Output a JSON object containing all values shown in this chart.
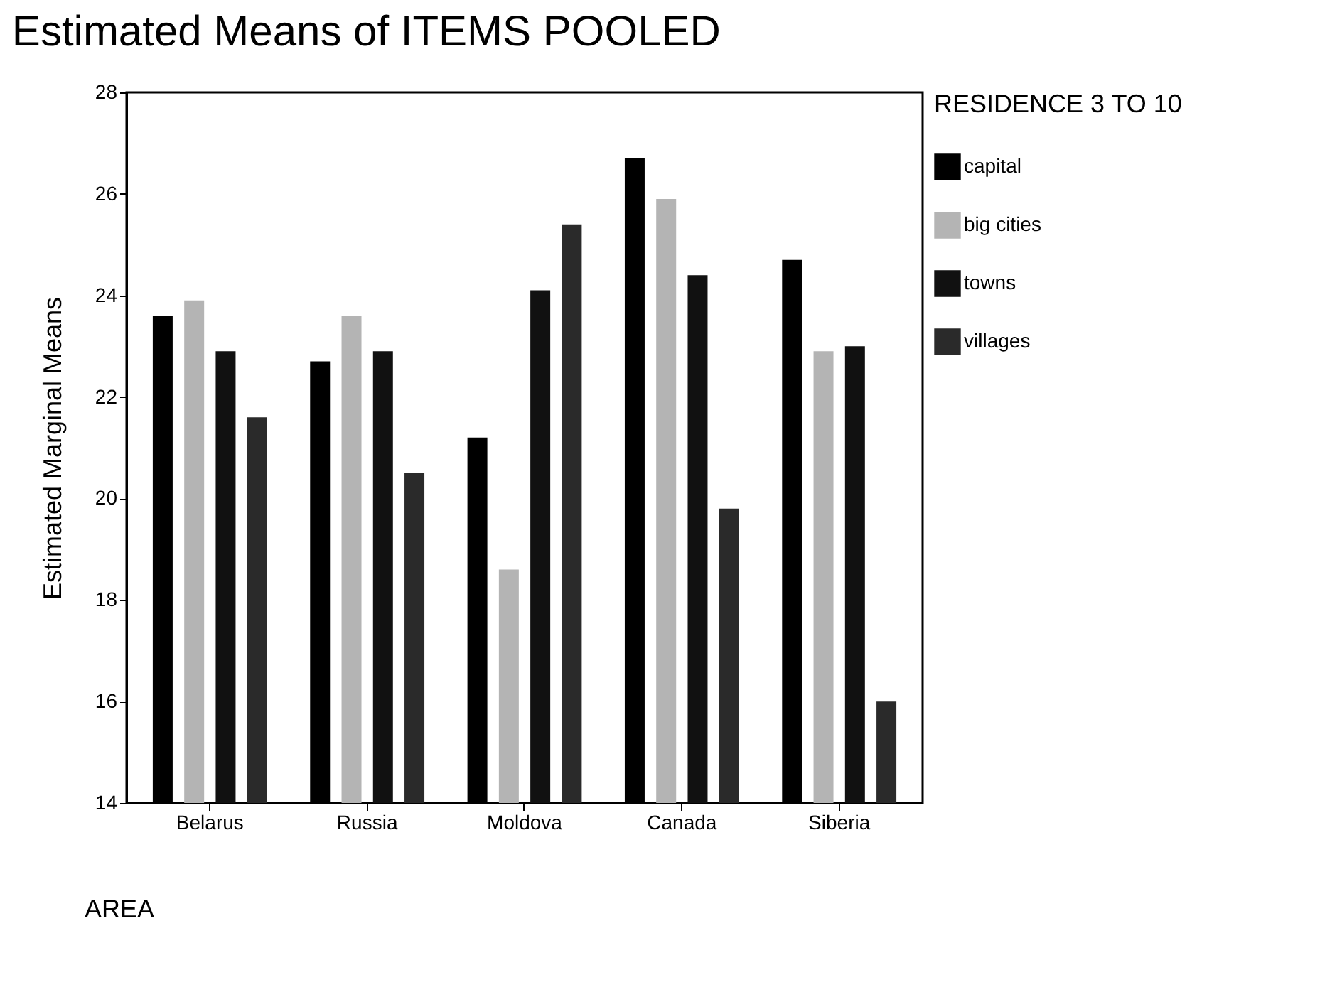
{
  "chart_data": {
    "type": "bar",
    "title": "Estimated Means of ITEMS POOLED",
    "xlabel": "AREA",
    "ylabel": "Estimated Marginal Means",
    "legend_title": "RESIDENCE 3 TO 10",
    "categories": [
      "Belarus",
      "Russia",
      "Moldova",
      "Canada",
      "Siberia"
    ],
    "series": [
      {
        "name": "capital",
        "color": "#000000",
        "values": [
          23.6,
          22.7,
          21.2,
          26.7,
          24.7
        ]
      },
      {
        "name": "big cities",
        "color": "#b4b4b4",
        "values": [
          23.9,
          23.6,
          18.6,
          25.9,
          22.9
        ]
      },
      {
        "name": "towns",
        "color": "#111111",
        "values": [
          22.9,
          22.9,
          24.1,
          24.4,
          23.0
        ]
      },
      {
        "name": "villages",
        "color": "#2a2a2a",
        "values": [
          21.6,
          20.5,
          25.4,
          19.8,
          16.0
        ]
      }
    ],
    "ylim": [
      14,
      28
    ],
    "yticks": [
      14,
      16,
      18,
      20,
      22,
      24,
      26,
      28
    ],
    "grid": false,
    "legend": "right"
  }
}
